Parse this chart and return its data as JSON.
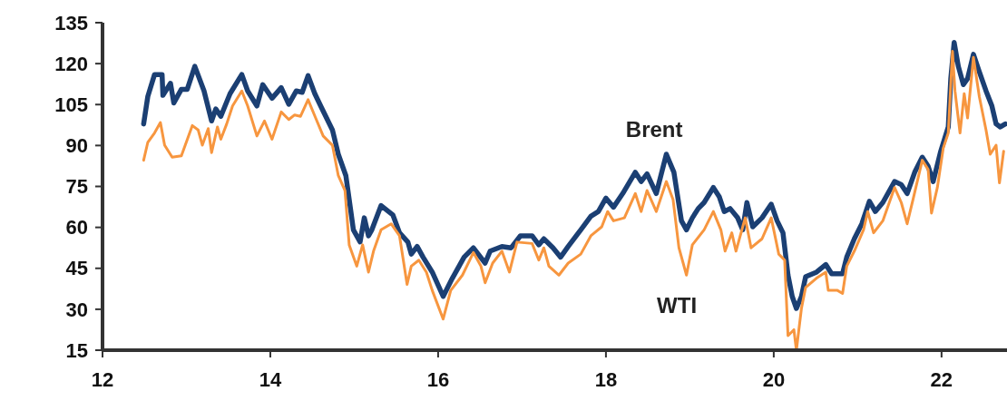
{
  "chart_data": {
    "type": "line",
    "xlim": [
      12,
      22.78
    ],
    "xticks": [
      12,
      14,
      16,
      18,
      20,
      22
    ],
    "ylim": [
      15,
      135
    ],
    "yticks": [
      15,
      30,
      45,
      60,
      75,
      90,
      105,
      120,
      135
    ],
    "grid": false,
    "line_style": "solid",
    "marker": "none",
    "series": [
      {
        "name": "Brent",
        "color": "#1b3f73",
        "x": [
          12.49,
          12.54,
          12.62,
          12.71,
          12.72,
          12.81,
          12.85,
          12.94,
          13.01,
          13.1,
          13.21,
          13.3,
          13.35,
          13.41,
          13.52,
          13.66,
          13.73,
          13.84,
          13.91,
          14.02,
          14.13,
          14.22,
          14.31,
          14.38,
          14.45,
          14.53,
          14.6,
          14.74,
          14.81,
          14.9,
          14.96,
          14.99,
          15.07,
          15.12,
          15.17,
          15.21,
          15.32,
          15.46,
          15.54,
          15.64,
          15.68,
          15.75,
          15.82,
          15.93,
          16.06,
          16.17,
          16.31,
          16.42,
          16.56,
          16.62,
          16.76,
          16.87,
          16.98,
          17.12,
          17.2,
          17.26,
          17.37,
          17.46,
          17.55,
          17.7,
          17.82,
          17.91,
          18.0,
          18.09,
          18.2,
          18.35,
          18.42,
          18.49,
          18.6,
          18.72,
          18.81,
          18.9,
          18.96,
          19.03,
          19.1,
          19.17,
          19.28,
          19.35,
          19.41,
          19.48,
          19.57,
          19.63,
          19.68,
          19.75,
          19.86,
          19.97,
          20.04,
          20.11,
          20.17,
          20.22,
          20.27,
          20.33,
          20.38,
          20.51,
          20.62,
          20.69,
          20.82,
          20.87,
          20.96,
          21.05,
          21.14,
          21.21,
          21.3,
          21.44,
          21.52,
          21.59,
          21.68,
          21.77,
          21.84,
          21.9,
          21.99,
          22.08,
          22.11,
          22.15,
          22.2,
          22.26,
          22.31,
          22.38,
          22.45,
          22.53,
          22.6,
          22.65,
          22.7,
          22.76
        ],
        "values": [
          97.9,
          108,
          116,
          116,
          108.4,
          112.8,
          105.6,
          110.6,
          110.6,
          119,
          110,
          99,
          103.4,
          100.7,
          109,
          116,
          110,
          104.5,
          112.3,
          107.3,
          111.2,
          105.1,
          110,
          109.5,
          115.6,
          109,
          104.5,
          95.7,
          86.8,
          79,
          65.8,
          59.1,
          54.7,
          63.5,
          56.9,
          59.1,
          68,
          64.6,
          58,
          54.6,
          50.2,
          53,
          49.1,
          43.6,
          34.7,
          41.4,
          49.1,
          52.5,
          46.9,
          51.3,
          53,
          52.5,
          56.9,
          56.9,
          53.6,
          55.8,
          52.5,
          49.1,
          53,
          59.1,
          64.1,
          65.8,
          70.7,
          67.4,
          72.4,
          80.2,
          76.8,
          79.6,
          72.4,
          86.8,
          80.2,
          62.4,
          59.1,
          63.5,
          66.9,
          69.1,
          74.6,
          71.3,
          65.8,
          66.9,
          63.5,
          59.1,
          69.1,
          60.2,
          63.5,
          68.5,
          62.4,
          58,
          42.5,
          34.7,
          30.3,
          34.7,
          41.9,
          43.6,
          46.4,
          43,
          43,
          49.1,
          55.8,
          61.3,
          69.6,
          65.8,
          69.1,
          76.8,
          75.7,
          72.4,
          80.2,
          85.7,
          82.4,
          76.8,
          87.9,
          96.8,
          114.5,
          127.8,
          119,
          112.3,
          114.5,
          123.4,
          117,
          110,
          104.5,
          97.9,
          96.8,
          97.9
        ]
      },
      {
        "name": "WTI",
        "color": "#f7963f",
        "x": [
          12.49,
          12.54,
          12.62,
          12.69,
          12.74,
          12.83,
          12.94,
          13.07,
          13.14,
          13.19,
          13.26,
          13.3,
          13.37,
          13.41,
          13.48,
          13.55,
          13.66,
          13.73,
          13.84,
          13.93,
          14.02,
          14.13,
          14.22,
          14.29,
          14.36,
          14.45,
          14.54,
          14.63,
          14.74,
          14.81,
          14.89,
          14.94,
          15.03,
          15.1,
          15.17,
          15.23,
          15.32,
          15.44,
          15.54,
          15.63,
          15.68,
          15.77,
          15.86,
          15.93,
          16.06,
          16.15,
          16.29,
          16.42,
          16.51,
          16.56,
          16.65,
          16.76,
          16.85,
          16.94,
          17.12,
          17.2,
          17.26,
          17.32,
          17.44,
          17.55,
          17.7,
          17.82,
          17.95,
          18.02,
          18.09,
          18.22,
          18.35,
          18.42,
          18.49,
          18.6,
          18.72,
          18.8,
          18.87,
          18.96,
          19.03,
          19.17,
          19.28,
          19.37,
          19.42,
          19.5,
          19.55,
          19.66,
          19.73,
          19.86,
          19.97,
          20.06,
          20.13,
          20.17,
          20.24,
          20.27,
          20.33,
          20.38,
          20.51,
          20.62,
          20.65,
          20.76,
          20.82,
          20.87,
          20.96,
          21.07,
          21.12,
          21.19,
          21.3,
          21.44,
          21.52,
          21.59,
          21.66,
          21.77,
          21.84,
          21.88,
          21.95,
          22.02,
          22.08,
          22.13,
          22.16,
          22.22,
          22.27,
          22.31,
          22.38,
          22.45,
          22.53,
          22.58,
          22.65,
          22.69,
          22.74
        ],
        "values": [
          84.6,
          91.2,
          94.6,
          98.4,
          90.1,
          85.7,
          86.2,
          97.3,
          95.7,
          90.1,
          96.2,
          87.4,
          96.8,
          92.3,
          97.9,
          104.5,
          110,
          104.5,
          93.5,
          99,
          92.3,
          102.3,
          99.5,
          101.2,
          100.7,
          106.8,
          100.1,
          93.5,
          90.1,
          79,
          73.5,
          53.6,
          45.8,
          53.6,
          43.6,
          51.3,
          59.1,
          61.3,
          56.9,
          39.1,
          45.8,
          48,
          43.6,
          36.9,
          26.4,
          36.9,
          42.5,
          50.8,
          45.8,
          39.7,
          46.9,
          51.3,
          43.6,
          54.6,
          54.1,
          48,
          52.5,
          45.8,
          42.5,
          46.9,
          50.2,
          56.9,
          60.2,
          65.8,
          62.4,
          63.5,
          72.4,
          65.8,
          73.5,
          65.8,
          76.8,
          70.2,
          52.5,
          42.5,
          53.6,
          59.1,
          65.8,
          59.1,
          51.3,
          58,
          51.3,
          63.5,
          52.5,
          55.8,
          63.5,
          50.2,
          48,
          20.3,
          22.5,
          15,
          30.3,
          38,
          41.4,
          43.6,
          36.9,
          36.9,
          35.8,
          45.8,
          51.3,
          59.1,
          65.8,
          58,
          62.4,
          74.6,
          69.1,
          61.3,
          70.2,
          84.6,
          81.2,
          65.2,
          74.6,
          89,
          94.6,
          124.5,
          110,
          94.6,
          109,
          100.1,
          122.3,
          107.9,
          95.7,
          86.8,
          90.1,
          76.3,
          87.9
        ]
      }
    ]
  }
}
